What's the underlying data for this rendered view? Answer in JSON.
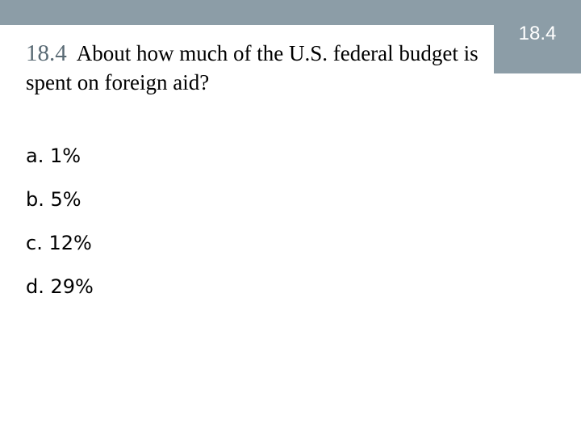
{
  "badge": {
    "label": "18.4"
  },
  "question": {
    "number": "18.4",
    "text": "About how much of the U.S. federal budget is spent on foreign aid?"
  },
  "options": [
    {
      "text": "a. 1%"
    },
    {
      "text": "b. 5%"
    },
    {
      "text": "c. 12%"
    },
    {
      "text": "d. 29%"
    }
  ],
  "colors": {
    "bar": "#8c9da7",
    "question_number": "#596a74"
  }
}
